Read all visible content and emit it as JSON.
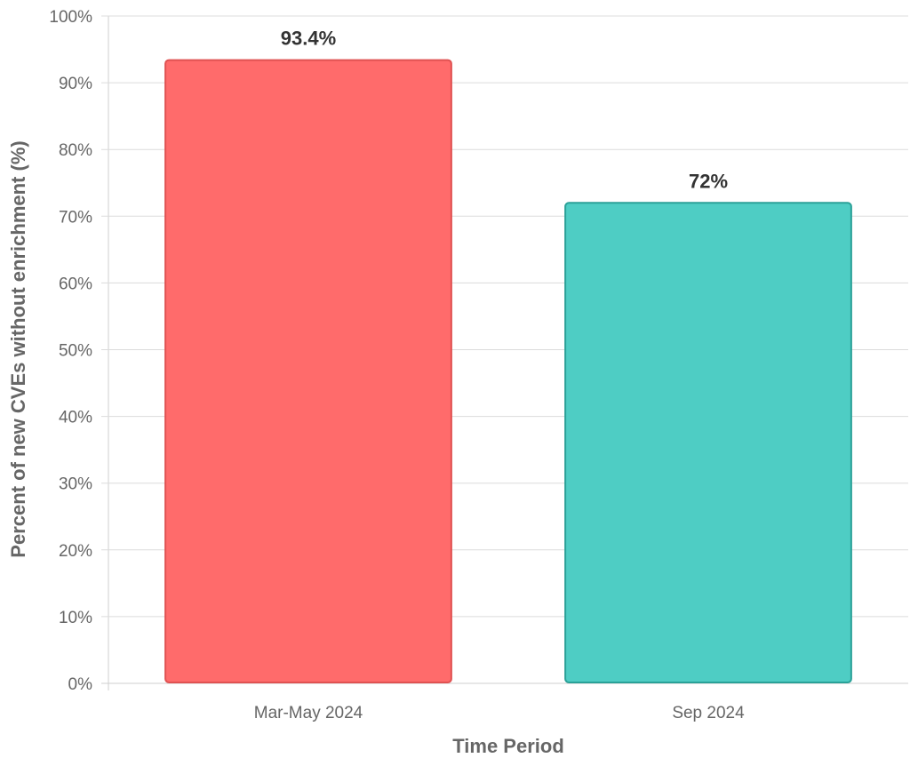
{
  "chart_data": {
    "type": "bar",
    "categories": [
      "Mar-May 2024",
      "Sep 2024"
    ],
    "values": [
      93.4,
      72
    ],
    "data_labels": [
      "93.4%",
      "72%"
    ],
    "xlabel": "Time Period",
    "ylabel": "Percent of new CVEs without enrichment (%)",
    "ylim": [
      0,
      100
    ],
    "yticks": [
      0,
      10,
      20,
      30,
      40,
      50,
      60,
      70,
      80,
      90,
      100
    ],
    "ytick_labels": [
      "0%",
      "10%",
      "20%",
      "30%",
      "40%",
      "50%",
      "60%",
      "70%",
      "80%",
      "90%",
      "100%"
    ],
    "grid": true,
    "bar_colors": [
      {
        "fill": "#ff6b6b",
        "stroke": "#e05252"
      },
      {
        "fill": "#4ecdc4",
        "stroke": "#2aa198"
      }
    ]
  }
}
